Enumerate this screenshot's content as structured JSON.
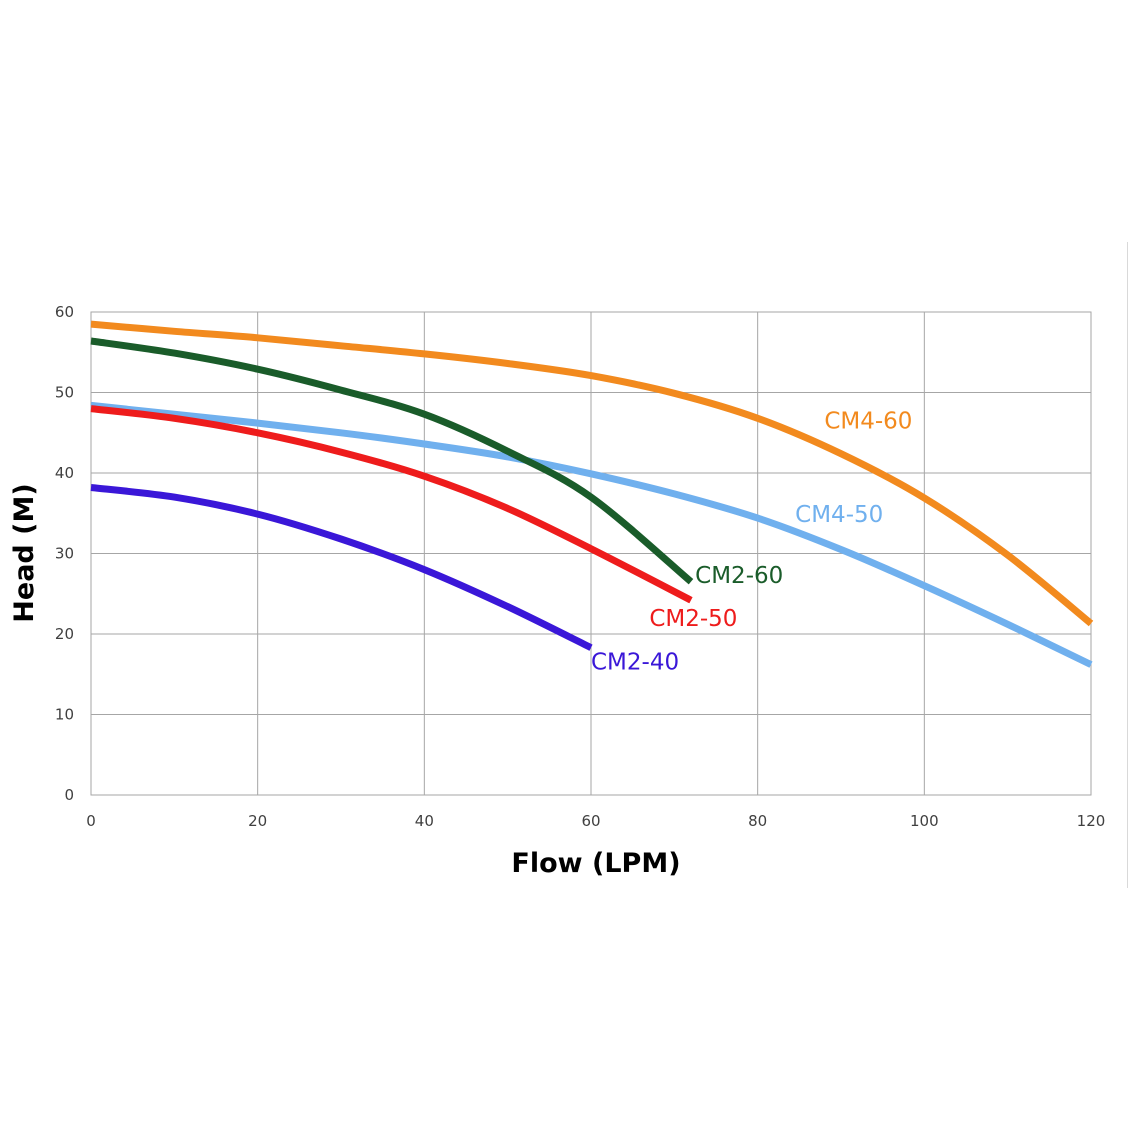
{
  "chart_data": {
    "type": "line",
    "xlabel": "Flow (LPM)",
    "ylabel": "Head (M)",
    "xlim": [
      0,
      120
    ],
    "ylim": [
      0,
      60
    ],
    "x_ticks": [
      0,
      20,
      40,
      60,
      80,
      100,
      120
    ],
    "y_ticks": [
      0,
      10,
      20,
      30,
      40,
      50,
      60
    ],
    "grid": true,
    "legend": "none (inline labels)",
    "series": [
      {
        "name": "CM4-60",
        "color": "#f28a1e",
        "x": [
          0,
          10,
          20,
          30,
          40,
          50,
          60,
          70,
          80,
          90,
          100,
          110,
          120
        ],
        "y": [
          58.5,
          57.6,
          56.8,
          55.8,
          54.8,
          53.6,
          52.1,
          49.9,
          46.8,
          42.4,
          36.9,
          29.8,
          21.3
        ]
      },
      {
        "name": "CM4-50",
        "color": "#70b0ee",
        "x": [
          0,
          10,
          20,
          30,
          40,
          50,
          60,
          70,
          80,
          90,
          100,
          110,
          120
        ],
        "y": [
          48.4,
          47.3,
          46.2,
          45.0,
          43.6,
          42.0,
          39.9,
          37.4,
          34.4,
          30.5,
          26.0,
          21.2,
          16.2
        ]
      },
      {
        "name": "CM2-60",
        "color": "#1a5c2a",
        "x": [
          0,
          10,
          20,
          30,
          40,
          50,
          60,
          72
        ],
        "y": [
          56.4,
          54.9,
          52.9,
          50.3,
          47.3,
          42.7,
          37.0,
          26.5
        ]
      },
      {
        "name": "CM2-50",
        "color": "#ee1c1c",
        "x": [
          0,
          10,
          20,
          30,
          40,
          50,
          60,
          72
        ],
        "y": [
          48.0,
          46.8,
          45.0,
          42.6,
          39.6,
          35.6,
          30.6,
          24.2
        ]
      },
      {
        "name": "CM2-40",
        "color": "#3a17d8",
        "x": [
          0,
          10,
          20,
          30,
          40,
          50,
          60
        ],
        "y": [
          38.2,
          37.0,
          34.9,
          31.8,
          28.0,
          23.4,
          18.3
        ]
      }
    ],
    "label_positions": [
      {
        "name": "CM4-60",
        "x": 88,
        "y": 46.5
      },
      {
        "name": "CM4-50",
        "x": 84.5,
        "y": 34.9
      },
      {
        "name": "CM2-60",
        "x": 72.5,
        "y": 27.3
      },
      {
        "name": "CM2-50",
        "x": 67,
        "y": 22.0
      },
      {
        "name": "CM2-40",
        "x": 60,
        "y": 16.6
      }
    ]
  }
}
